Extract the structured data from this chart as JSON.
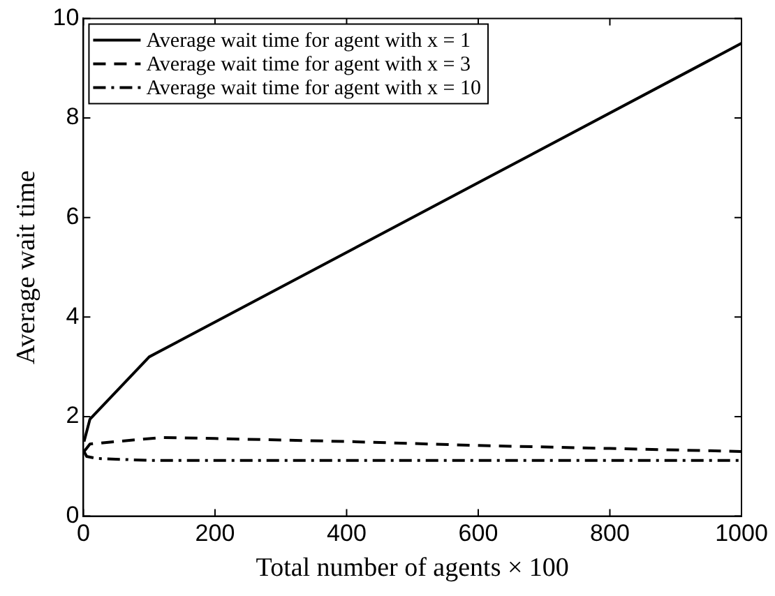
{
  "chart_data": {
    "type": "line",
    "xlabel": "Total number of agents × 100",
    "ylabel": "Average wait time",
    "xlim": [
      0,
      1000
    ],
    "xticks": [
      0,
      200,
      400,
      600,
      800,
      1000
    ],
    "ylim": [
      0,
      10
    ],
    "yticks": [
      0,
      2,
      4,
      6,
      8,
      10
    ],
    "grid": false,
    "legend": "top left",
    "marker": "none",
    "series": [
      {
        "name": "Average wait time for agent with x = 1",
        "color": "#000000",
        "line_style": "solid",
        "x": [
          1,
          10,
          100,
          1000
        ],
        "values": [
          1.5,
          1.95,
          3.2,
          9.5
        ]
      },
      {
        "name": "Average wait time for agent with x = 3",
        "color": "#000000",
        "line_style": "dashed",
        "x": [
          1,
          10,
          50,
          120,
          200,
          400,
          600,
          800,
          1000
        ],
        "values": [
          1.3,
          1.45,
          1.5,
          1.58,
          1.56,
          1.5,
          1.42,
          1.36,
          1.3
        ]
      },
      {
        "name": "Average wait time for agent with x = 10",
        "color": "#000000",
        "line_style": "dashdot",
        "x": [
          1,
          5,
          20,
          100,
          400,
          700,
          1000
        ],
        "values": [
          1.3,
          1.2,
          1.16,
          1.12,
          1.12,
          1.12,
          1.12
        ]
      }
    ]
  }
}
